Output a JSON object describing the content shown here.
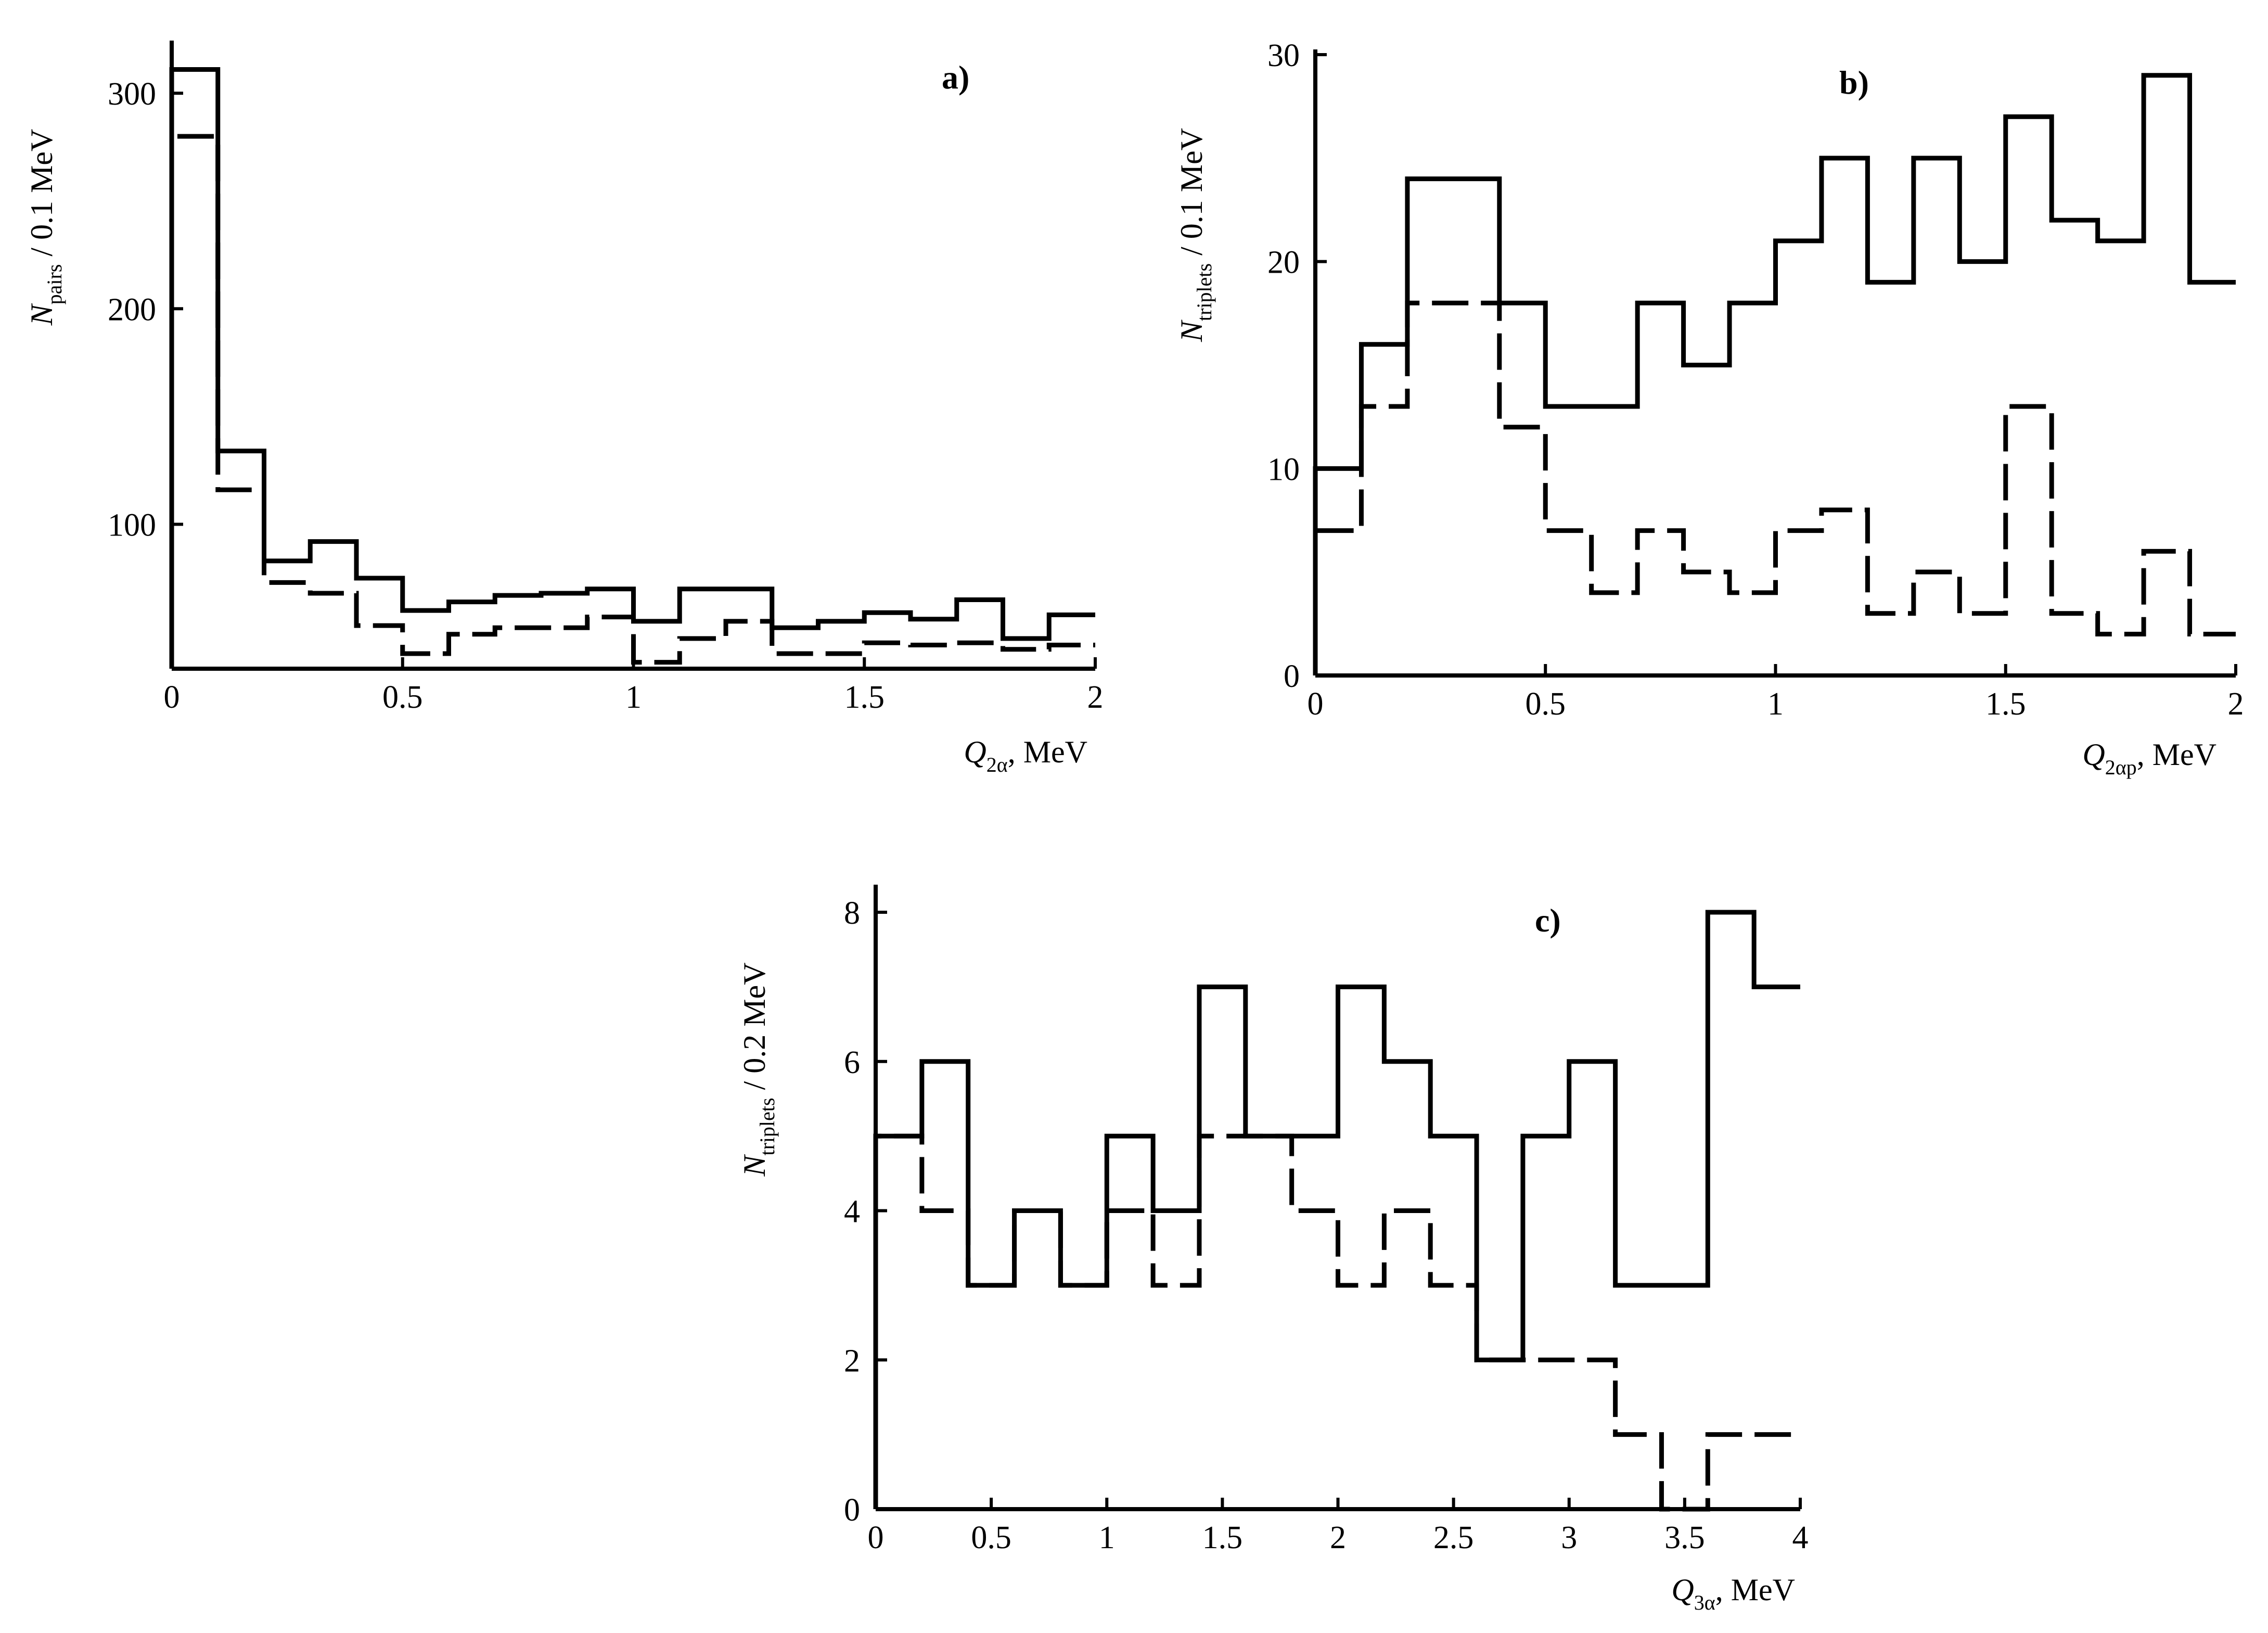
{
  "chart_data": [
    {
      "panel_label": "a)",
      "type": "histogram",
      "xlabel": {
        "symbol": "Q",
        "sub": "2α",
        "unit": ", MeV"
      },
      "ylabel": {
        "symbol": "N",
        "sub": "pairs",
        "unit": " / 0.1 MeV"
      },
      "xlim": [
        0,
        2
      ],
      "ylim": [
        33,
        322
      ],
      "x_ticks": [
        0,
        0.5,
        1,
        1.5,
        2
      ],
      "x_tick_labels": [
        "0",
        "0.5",
        "1",
        "1.5",
        "2"
      ],
      "y_ticks": [
        100,
        200,
        300
      ],
      "y_tick_labels": [
        "100",
        "200",
        "300"
      ],
      "bin_width": 0.1,
      "series": [
        {
          "style": "solid",
          "bin_edges": [
            0,
            0.1,
            0.2,
            0.3,
            0.4,
            0.5,
            0.6,
            0.7,
            0.8,
            0.9,
            1.0,
            1.1,
            1.2,
            1.3,
            1.4,
            1.5,
            1.6,
            1.7,
            1.8,
            1.9,
            2.0
          ],
          "values": [
            311,
            134,
            83,
            92,
            75,
            60,
            64,
            67,
            68,
            70,
            55,
            70,
            70,
            52,
            55,
            59,
            56,
            65,
            47,
            58
          ]
        },
        {
          "style": "dashed",
          "bin_edges": [
            0,
            0.1,
            0.2,
            0.3,
            0.4,
            0.5,
            0.6,
            0.7,
            0.8,
            0.9,
            1.0,
            1.1,
            1.2,
            1.3,
            1.4,
            1.5,
            1.6,
            1.7,
            1.8,
            1.9,
            2.0
          ],
          "values": [
            280,
            116,
            73,
            68,
            53,
            40,
            49,
            52,
            52,
            57,
            36,
            47,
            55,
            40,
            40,
            45,
            44,
            45,
            42,
            44
          ]
        }
      ]
    },
    {
      "panel_label": "b)",
      "type": "histogram",
      "xlabel": {
        "symbol": "Q",
        "sub": "2αp",
        "unit": ", MeV"
      },
      "ylabel": {
        "symbol": "N",
        "sub": "triplets",
        "unit": " / 0.1 MeV"
      },
      "xlim": [
        0,
        2
      ],
      "ylim": [
        0,
        30
      ],
      "x_ticks": [
        0,
        0.5,
        1,
        1.5,
        2
      ],
      "x_tick_labels": [
        "0",
        "0.5",
        "1",
        "1.5",
        "2"
      ],
      "y_ticks": [
        0,
        10,
        20,
        30
      ],
      "y_tick_labels": [
        "0",
        "10",
        "20",
        "30"
      ],
      "bin_width": 0.1,
      "series": [
        {
          "style": "solid",
          "bin_edges": [
            0,
            0.1,
            0.2,
            0.3,
            0.4,
            0.5,
            0.6,
            0.7,
            0.8,
            0.9,
            1.0,
            1.1,
            1.2,
            1.3,
            1.4,
            1.5,
            1.6,
            1.7,
            1.8,
            1.9,
            2.0
          ],
          "values": [
            10,
            16,
            24,
            24,
            18,
            13,
            13,
            18,
            15,
            18,
            21,
            25,
            19,
            25,
            20,
            27,
            22,
            21,
            29,
            19
          ]
        },
        {
          "style": "dashed",
          "bin_edges": [
            0,
            0.1,
            0.2,
            0.3,
            0.4,
            0.5,
            0.6,
            0.7,
            0.8,
            0.9,
            1.0,
            1.1,
            1.2,
            1.3,
            1.4,
            1.5,
            1.6,
            1.7,
            1.8,
            1.9,
            2.0
          ],
          "values": [
            7,
            13,
            18,
            18,
            12,
            7,
            4,
            7,
            5,
            4,
            7,
            8,
            3,
            5,
            3,
            13,
            3,
            2,
            6,
            2
          ]
        }
      ]
    },
    {
      "panel_label": "c)",
      "type": "histogram",
      "xlabel": {
        "symbol": "Q",
        "sub": "3α",
        "unit": ", MeV"
      },
      "ylabel": {
        "symbol": "N",
        "sub": "triplets",
        "unit": " / 0.2 MeV"
      },
      "xlim": [
        0,
        4
      ],
      "ylim": [
        0,
        8.3
      ],
      "x_ticks": [
        0,
        0.5,
        1,
        1.5,
        2,
        2.5,
        3,
        3.5,
        4
      ],
      "x_tick_labels": [
        "0",
        "0.5",
        "1",
        "1.5",
        "2",
        "2.5",
        "3",
        "3.5",
        "4"
      ],
      "y_ticks": [
        0,
        2,
        4,
        6,
        8
      ],
      "y_tick_labels": [
        "0",
        "2",
        "4",
        "6",
        "8"
      ],
      "bin_width": 0.2,
      "series": [
        {
          "style": "solid",
          "bin_edges": [
            0,
            0.2,
            0.4,
            0.6,
            0.8,
            1.0,
            1.2,
            1.4,
            1.6,
            1.8,
            2.0,
            2.2,
            2.4,
            2.6,
            2.8,
            3.0,
            3.2,
            3.4,
            3.6,
            3.8,
            4.0
          ],
          "values": [
            5,
            6,
            3,
            4,
            3,
            5,
            4,
            7,
            5,
            5,
            7,
            6,
            5,
            2,
            5,
            6,
            3,
            3,
            8,
            7
          ]
        },
        {
          "style": "dashed",
          "bin_edges": [
            0,
            0.2,
            0.4,
            0.6,
            0.8,
            1.0,
            1.2,
            1.4,
            1.6,
            1.8,
            2.0,
            2.2,
            2.4,
            2.6,
            2.8,
            3.0,
            3.2,
            3.4,
            3.6,
            3.8,
            4.0
          ],
          "values": [
            5,
            4,
            3,
            4,
            3,
            4,
            3,
            5,
            5,
            4,
            3,
            4,
            3,
            2,
            2,
            2,
            1,
            0,
            1,
            1
          ]
        }
      ]
    }
  ]
}
